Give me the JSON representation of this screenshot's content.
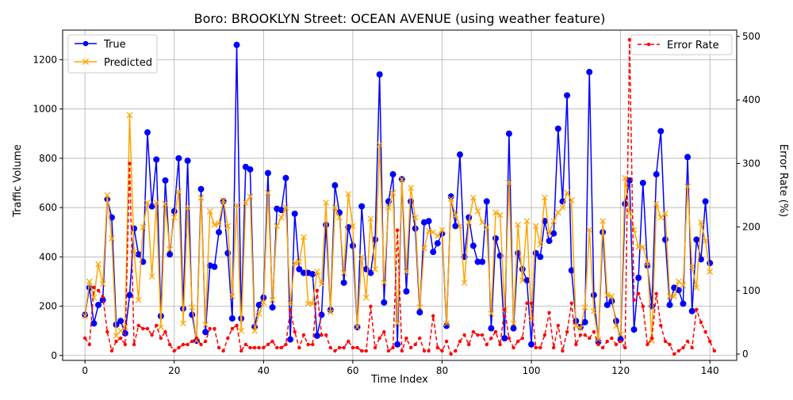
{
  "chart_data": {
    "type": "line",
    "title": "Boro: BROOKLYN Street: OCEAN AVENUE (using weather feature)",
    "xlabel": "Time Index",
    "ylabel": "Traffic Volume",
    "y2label": "Error Rate (%)",
    "xlim": [
      -5,
      146
    ],
    "ylim": [
      -20,
      1320
    ],
    "y2lim": [
      -10,
      510
    ],
    "xticks": [
      0,
      20,
      40,
      60,
      80,
      100,
      120,
      140
    ],
    "yticks": [
      0,
      200,
      400,
      600,
      800,
      1000,
      1200
    ],
    "y2ticks": [
      0,
      100,
      200,
      300,
      400,
      500
    ],
    "grid": true,
    "legend_left": {
      "placement": "upper-left",
      "entries": [
        "True",
        "Predicted"
      ]
    },
    "legend_right": {
      "placement": "upper-right",
      "entries": [
        "Error Rate"
      ]
    },
    "colors": {
      "true": "#0000ff",
      "predicted": "#ffa500",
      "error": "#ff0000",
      "grid": "#b0b0b0"
    },
    "series": [
      {
        "name": "True",
        "axis": "left",
        "marker": "circle",
        "linestyle": "solid",
        "values": [
          165,
          275,
          130,
          205,
          225,
          635,
          560,
          125,
          140,
          90,
          245,
          515,
          410,
          380,
          905,
          605,
          795,
          160,
          710,
          410,
          585,
          800,
          190,
          790,
          165,
          60,
          675,
          95,
          365,
          360,
          500,
          625,
          415,
          150,
          1260,
          150,
          765,
          755,
          115,
          205,
          235,
          740,
          195,
          595,
          590,
          720,
          65,
          575,
          350,
          335,
          335,
          330,
          80,
          165,
          530,
          185,
          690,
          580,
          295,
          520,
          445,
          115,
          605,
          350,
          335,
          470,
          1140,
          215,
          625,
          735,
          45,
          715,
          260,
          625,
          515,
          175,
          540,
          545,
          420,
          455,
          495,
          120,
          645,
          525,
          815,
          400,
          560,
          445,
          380,
          380,
          625,
          110,
          475,
          405,
          70,
          900,
          110,
          415,
          350,
          305,
          45,
          415,
          400,
          545,
          465,
          495,
          920,
          625,
          1055,
          345,
          140,
          115,
          135,
          1150,
          245,
          55,
          500,
          205,
          220,
          140,
          65,
          615,
          710,
          105,
          315,
          700,
          365,
          200,
          735,
          910,
          470,
          205,
          275,
          265,
          210,
          805,
          180,
          470,
          390,
          625,
          375
        ],
        "value_labels": []
      },
      {
        "name": "Predicted",
        "axis": "left",
        "marker": "x",
        "linestyle": "solid",
        "values": [
          160,
          300,
          235,
          370,
          290,
          650,
          475,
          80,
          100,
          115,
          975,
          420,
          225,
          520,
          620,
          320,
          620,
          115,
          615,
          430,
          560,
          665,
          130,
          600,
          195,
          60,
          640,
          125,
          585,
          530,
          535,
          630,
          525,
          240,
          610,
          100,
          620,
          645,
          100,
          170,
          215,
          660,
          225,
          525,
          560,
          600,
          210,
          375,
          380,
          480,
          210,
          210,
          340,
          290,
          620,
          175,
          600,
          560,
          335,
          655,
          525,
          115,
          400,
          235,
          555,
          350,
          855,
          295,
          600,
          660,
          130,
          715,
          340,
          680,
          560,
          195,
          435,
          505,
          500,
          485,
          510,
          130,
          635,
          570,
          525,
          295,
          540,
          640,
          585,
          540,
          520,
          170,
          580,
          570,
          185,
          700,
          130,
          530,
          305,
          545,
          150,
          525,
          450,
          640,
          495,
          545,
          580,
          600,
          660,
          630,
          120,
          110,
          195,
          510,
          180,
          65,
          545,
          245,
          240,
          120,
          85,
          720,
          580,
          510,
          440,
          440,
          375,
          60,
          615,
          560,
          575,
          240,
          240,
          300,
          285,
          685,
          360,
          275,
          540,
          465,
          340
        ],
        "value_labels": []
      },
      {
        "name": "Error Rate",
        "axis": "right",
        "marker": "dot",
        "linestyle": "dashed",
        "values": [
          25,
          15,
          105,
          100,
          90,
          35,
          5,
          20,
          25,
          15,
          300,
          15,
          45,
          40,
          40,
          30,
          45,
          25,
          35,
          15,
          5,
          10,
          15,
          15,
          20,
          25,
          15,
          20,
          40,
          40,
          10,
          5,
          25,
          40,
          45,
          5,
          15,
          10,
          10,
          10,
          10,
          15,
          20,
          10,
          10,
          15,
          70,
          35,
          10,
          30,
          15,
          15,
          100,
          30,
          30,
          10,
          5,
          10,
          10,
          20,
          10,
          10,
          5,
          5,
          75,
          10,
          25,
          35,
          5,
          10,
          195,
          5,
          25,
          10,
          15,
          25,
          5,
          5,
          60,
          10,
          5,
          20,
          0,
          5,
          20,
          30,
          15,
          35,
          30,
          30,
          15,
          25,
          35,
          15,
          70,
          25,
          10,
          20,
          25,
          80,
          80,
          10,
          10,
          30,
          65,
          10,
          45,
          5,
          35,
          80,
          15,
          30,
          30,
          25,
          35,
          15,
          10,
          20,
          25,
          15,
          20,
          10,
          495,
          85,
          95,
          75,
          15,
          25,
          95,
          45,
          20,
          15,
          0,
          5,
          10,
          20,
          10,
          70,
          50,
          35,
          20,
          5
        ],
        "value_labels": []
      }
    ]
  }
}
